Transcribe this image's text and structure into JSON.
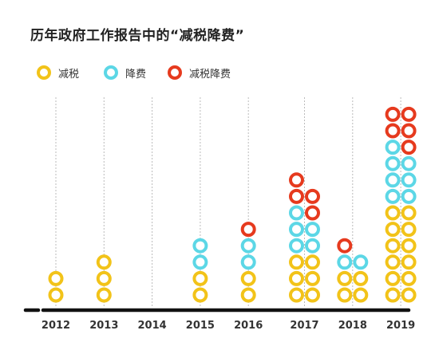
{
  "title": "历年政府工作报告中的“减税降费”",
  "colors": {
    "reduce_tax": "#F2C319",
    "reduce_fee": "#5CD7E6",
    "both": "#E63A1E",
    "axis": "#111111",
    "grid": "#BBBBBB",
    "text": "#333333"
  },
  "chart_data": {
    "type": "stacked-dot",
    "title": "历年政府工作报告中的“减税降费”",
    "categories": [
      "2012",
      "2013",
      "2014",
      "2015",
      "2016",
      "2017",
      "2018",
      "2019"
    ],
    "legend_position": "top-left",
    "grid": "vertical-dashed",
    "series": [
      {
        "key": "reduce_tax",
        "name": "减税",
        "color": "#F2C319"
      },
      {
        "key": "reduce_fee",
        "name": "降费",
        "color": "#5CD7E6"
      },
      {
        "key": "both",
        "name": "减税降费",
        "color": "#E63A1E"
      }
    ],
    "columns": [
      {
        "year": "2012",
        "stacks": [
          {
            "reduce_tax": 2,
            "reduce_fee": 0,
            "both": 0
          }
        ]
      },
      {
        "year": "2013",
        "stacks": [
          {
            "reduce_tax": 3,
            "reduce_fee": 0,
            "both": 0
          }
        ]
      },
      {
        "year": "2014",
        "stacks": []
      },
      {
        "year": "2015",
        "stacks": [
          {
            "reduce_tax": 2,
            "reduce_fee": 2,
            "both": 0
          }
        ]
      },
      {
        "year": "2016",
        "stacks": [
          {
            "reduce_tax": 2,
            "reduce_fee": 2,
            "both": 1
          }
        ]
      },
      {
        "year": "2017",
        "stacks": [
          {
            "reduce_tax": 3,
            "reduce_fee": 3,
            "both": 2
          },
          {
            "reduce_tax": 3,
            "reduce_fee": 2,
            "both": 2
          }
        ]
      },
      {
        "year": "2018",
        "stacks": [
          {
            "reduce_tax": 2,
            "reduce_fee": 1,
            "both": 1
          },
          {
            "reduce_tax": 2,
            "reduce_fee": 1,
            "both": 0
          }
        ]
      },
      {
        "year": "2019",
        "stacks": [
          {
            "reduce_tax": 6,
            "reduce_fee": 4,
            "both": 2
          },
          {
            "reduce_tax": 6,
            "reduce_fee": 3,
            "both": 3
          }
        ]
      }
    ]
  }
}
